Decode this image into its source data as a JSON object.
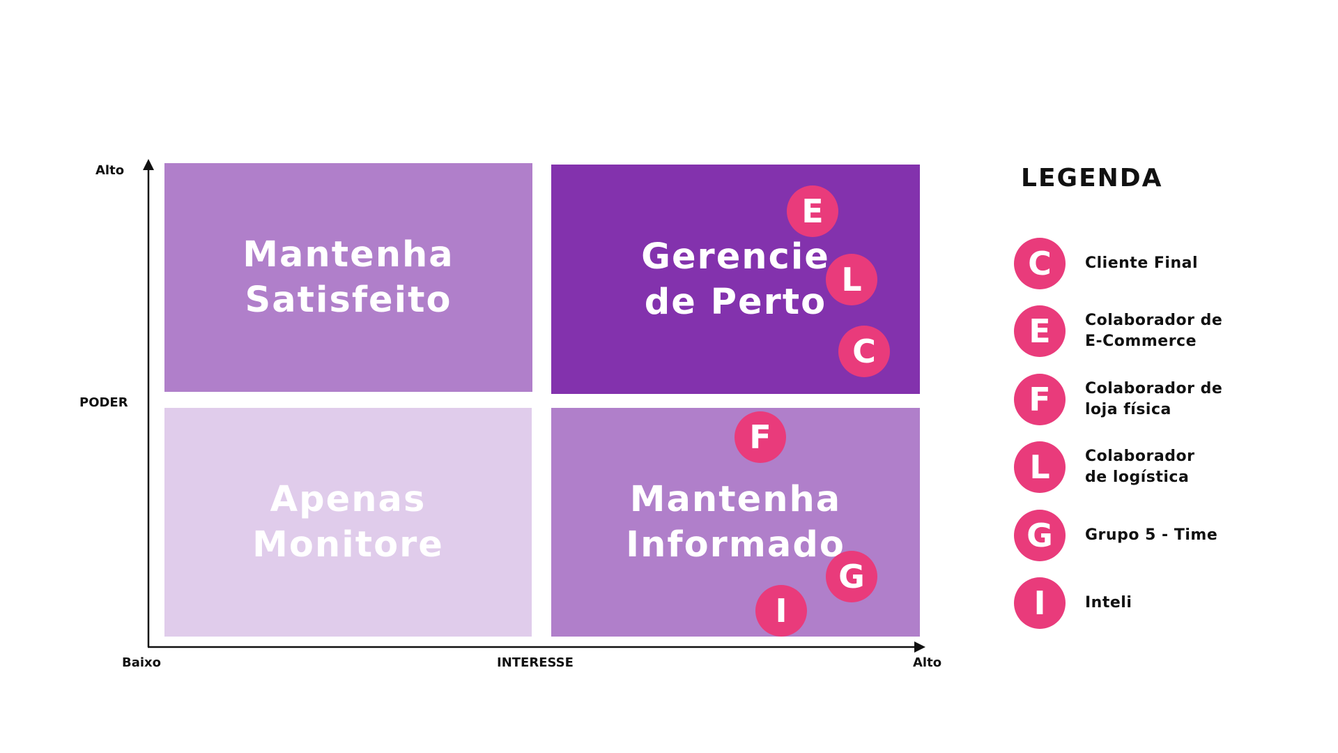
{
  "colors": {
    "quad_medium": "#b07fca",
    "quad_dark": "#8332ad",
    "quad_light": "#e0cceb",
    "marker": "#e93b7b",
    "text_on_quad": "#ffffff",
    "axis": "#111111"
  },
  "axes": {
    "y_high": "Alto",
    "y_title": "PODER",
    "x_low": "Baixo",
    "x_title": "INTERESSE",
    "x_high": "Alto"
  },
  "quadrants": {
    "top_left": "Mantenha\nSatisfeito",
    "top_right": "Gerencie\nde Perto",
    "bottom_left": "Apenas\nMonitore",
    "bottom_right": "Mantenha\nInformado"
  },
  "markers": {
    "e": "E",
    "l": "L",
    "c": "C",
    "f": "F",
    "g": "G",
    "i": "I"
  },
  "legend": {
    "title": "LEGENDA",
    "items": [
      {
        "letter": "C",
        "label": "Cliente Final"
      },
      {
        "letter": "E",
        "label": "Colaborador de\nE-Commerce"
      },
      {
        "letter": "F",
        "label": "Colaborador de\nloja física"
      },
      {
        "letter": "L",
        "label": "Colaborador\nde logística"
      },
      {
        "letter": "G",
        "label": "Grupo 5 - Time"
      },
      {
        "letter": "I",
        "label": "Inteli"
      }
    ]
  }
}
